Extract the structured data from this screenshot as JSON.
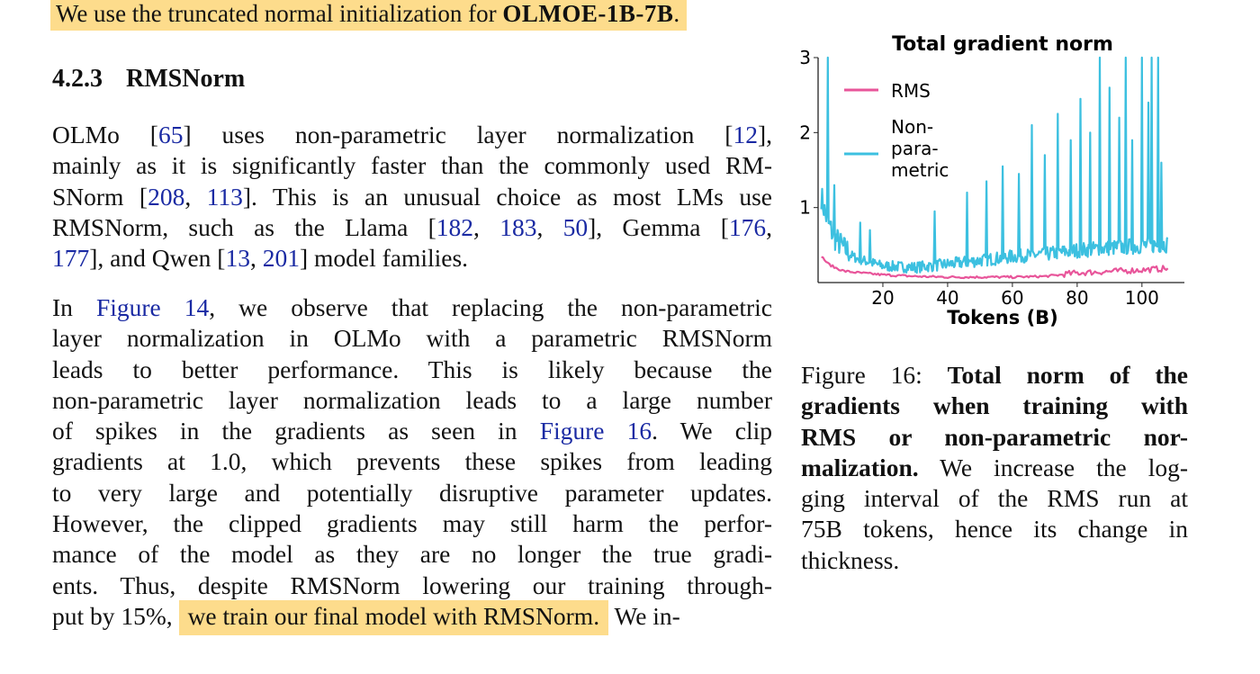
{
  "top_line": {
    "prefix": "We use the truncated normal initialization for ",
    "model": "OLMOE-1B-7B",
    "suffix": "."
  },
  "section": {
    "number": "4.2.3",
    "title": "RMSNorm"
  },
  "paragraph1": [
    [
      "OLMo [",
      "65",
      "] uses non-parametric layer normalization [",
      "12",
      "],"
    ],
    [
      "mainly as it is significantly faster than the commonly used RM-"
    ],
    [
      "SNorm [",
      "208",
      ", ",
      "113",
      "]. This is an unusual choice as most LMs use"
    ],
    [
      "RMSNorm, such as the Llama [",
      "182",
      ", ",
      "183",
      ", ",
      "50",
      "], Gemma [",
      "176",
      ","
    ],
    [
      "177",
      "], and Qwen [",
      "13",
      ", ",
      "201",
      "] model families."
    ]
  ],
  "paragraph2": {
    "l1a": "In ",
    "l1link": "Figure 14",
    "l1b": ", we observe that replacing the non-parametric",
    "l2": "layer normalization in OLMo with a parametric RMSNorm",
    "l3": "leads to better performance.   This is likely because the",
    "l4": "non-parametric layer normalization leads to a large number",
    "l5a": "of spikes in the gradients as seen in ",
    "l5link": "Figure 16",
    "l5b": ".   We clip",
    "l6": "gradients at 1.0, which prevents these spikes from leading",
    "l7": "to very large and potentially disruptive parameter updates.",
    "l8": "However, the clipped gradients may still harm the perfor-",
    "l9": "mance of the model as they are no longer the true gradi-",
    "l10": "ents. Thus, despite RMSNorm lowering our training through-",
    "l11a": "put by 15%, ",
    "l11hl": "we train our final model with RMSNorm.",
    "l11b": " We in-"
  },
  "caption": {
    "label": "Figure 16: ",
    "bold1": "Total norm of the",
    "bold2": "gradients when training with",
    "bold3": "RMS or non-parametric nor-",
    "bold4": "malization.",
    "rest4": " We increase the log-",
    "l5": "ging interval of the RMS run at",
    "l6": "75B tokens, hence its change in",
    "l7": "thickness."
  },
  "chart_data": {
    "type": "line",
    "title": "Total gradient norm",
    "xlabel": "Tokens (B)",
    "ylabel": "",
    "xlim": [
      0,
      112
    ],
    "ylim": [
      0,
      3
    ],
    "xticks": [
      "20",
      "40",
      "60",
      "80",
      "100"
    ],
    "yticks": [
      "1",
      "2",
      "3"
    ],
    "legend_position": "top-left",
    "series": [
      {
        "name": "RMS",
        "color": "#e8559a",
        "x": [
          1,
          3,
          5,
          8,
          12,
          20,
          30,
          40,
          50,
          60,
          70,
          75,
          80,
          90,
          100,
          108
        ],
        "y": [
          0.35,
          0.25,
          0.2,
          0.15,
          0.13,
          0.1,
          0.08,
          0.07,
          0.07,
          0.07,
          0.08,
          0.1,
          0.12,
          0.14,
          0.16,
          0.18
        ]
      },
      {
        "name": "Non-\npara-\nmetric",
        "color": "#3cc0e0",
        "x": [
          1,
          2,
          3,
          5,
          8,
          12,
          20,
          30,
          40,
          50,
          60,
          70,
          80,
          90,
          100,
          108
        ],
        "y": [
          1.1,
          0.9,
          0.75,
          0.55,
          0.4,
          0.3,
          0.2,
          0.18,
          0.22,
          0.27,
          0.32,
          0.35,
          0.4,
          0.43,
          0.46,
          0.48
        ]
      }
    ],
    "spikes": {
      "x": [
        3,
        5,
        13,
        16,
        36,
        46,
        52,
        57,
        62,
        66,
        70,
        74,
        78,
        81,
        84,
        87,
        90,
        93,
        95,
        97,
        100,
        102,
        103,
        105,
        106
      ],
      "y": [
        3.0,
        1.3,
        0.8,
        0.7,
        0.95,
        1.2,
        1.35,
        1.55,
        1.45,
        2.1,
        1.7,
        2.25,
        1.9,
        2.45,
        2.0,
        3.0,
        2.6,
        2.2,
        3.0,
        1.9,
        3.0,
        2.4,
        3.0,
        3.0,
        1.6
      ]
    }
  }
}
